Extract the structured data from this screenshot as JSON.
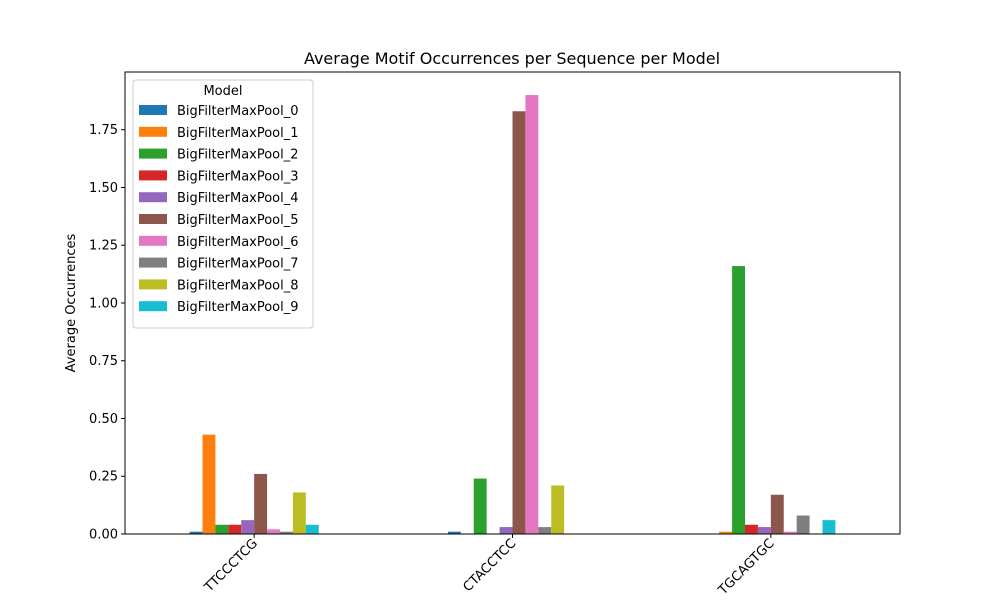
{
  "chart_data": {
    "type": "bar",
    "title": "Average Motif Occurrences per Sequence per Model",
    "xlabel": "",
    "ylabel": "Average Occurrences",
    "ylim": [
      0,
      1.9
    ],
    "yticks": [
      "0.00",
      "0.25",
      "0.50",
      "0.75",
      "1.00",
      "1.25",
      "1.50",
      "1.75"
    ],
    "ytick_values": [
      0,
      0.25,
      0.5,
      0.75,
      1.0,
      1.25,
      1.5,
      1.75
    ],
    "categories": [
      "TTCCCTCG",
      "CTACCTCC",
      "TGCAGTGC"
    ],
    "grid": false,
    "legend": {
      "title": "Model",
      "placement": "top-left"
    },
    "series": [
      {
        "name": "BigFilterMaxPool_0",
        "color": "#1f77b4",
        "values": [
          0.01,
          0.01,
          0.0
        ]
      },
      {
        "name": "BigFilterMaxPool_1",
        "color": "#ff7f0e",
        "values": [
          0.43,
          0.0,
          0.01
        ]
      },
      {
        "name": "BigFilterMaxPool_2",
        "color": "#2ca02c",
        "values": [
          0.04,
          0.24,
          1.16
        ]
      },
      {
        "name": "BigFilterMaxPool_3",
        "color": "#d62728",
        "values": [
          0.04,
          0.0,
          0.04
        ]
      },
      {
        "name": "BigFilterMaxPool_4",
        "color": "#9467bd",
        "values": [
          0.06,
          0.03,
          0.03
        ]
      },
      {
        "name": "BigFilterMaxPool_5",
        "color": "#8c564b",
        "values": [
          0.26,
          1.83,
          0.17
        ]
      },
      {
        "name": "BigFilterMaxPool_6",
        "color": "#e377c2",
        "values": [
          0.02,
          1.9,
          0.01
        ]
      },
      {
        "name": "BigFilterMaxPool_7",
        "color": "#7f7f7f",
        "values": [
          0.01,
          0.03,
          0.08
        ]
      },
      {
        "name": "BigFilterMaxPool_8",
        "color": "#bcbd22",
        "values": [
          0.18,
          0.21,
          0.0
        ]
      },
      {
        "name": "BigFilterMaxPool_9",
        "color": "#17becf",
        "values": [
          0.04,
          0.0,
          0.06
        ]
      }
    ]
  }
}
